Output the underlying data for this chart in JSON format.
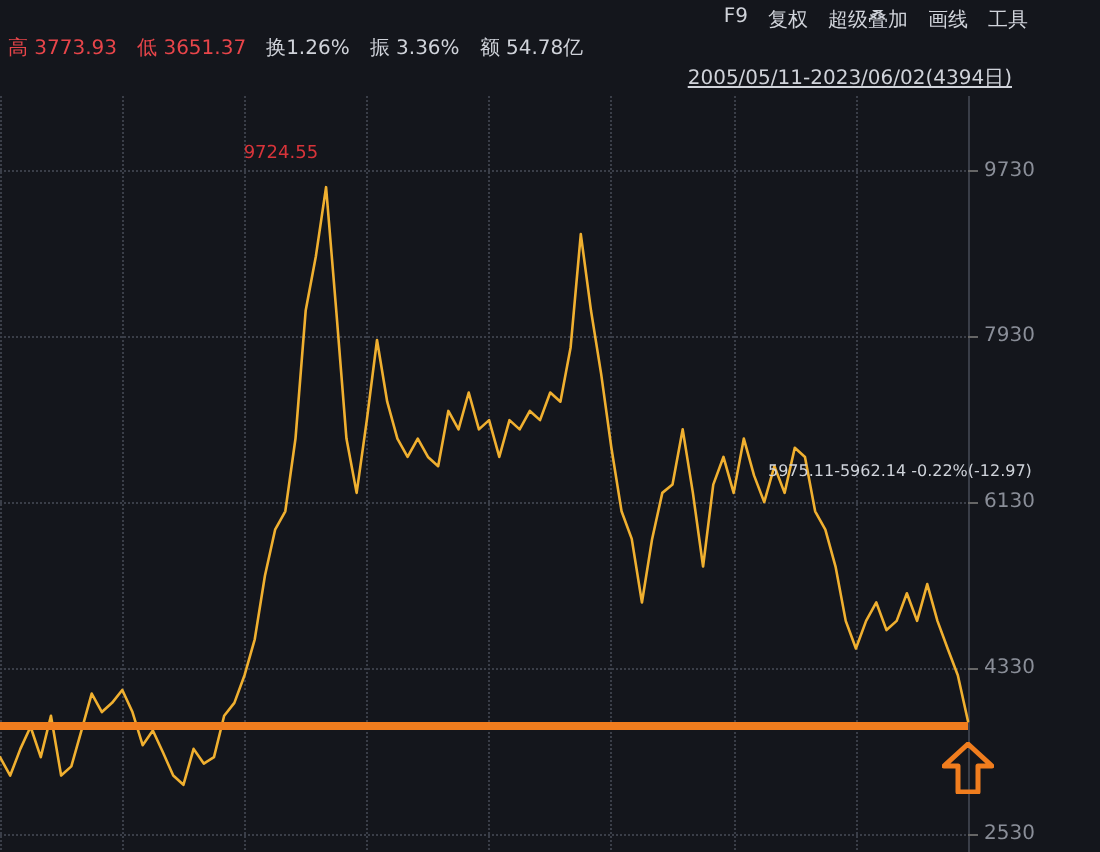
{
  "chart_data": {
    "type": "line",
    "categories": [
      null,
      null,
      null,
      null,
      null,
      null,
      null,
      null,
      null,
      null,
      null,
      null,
      null,
      null,
      null,
      null,
      null,
      null,
      null,
      null,
      null,
      null,
      null,
      null,
      null,
      null,
      null,
      null,
      null,
      null,
      null,
      null,
      null,
      null,
      null,
      null,
      null,
      null,
      null,
      null,
      null,
      null,
      null,
      null,
      null,
      null,
      null,
      null,
      null,
      null,
      null,
      null,
      null,
      null,
      null,
      null,
      null,
      null,
      null,
      null,
      null,
      null,
      null,
      null,
      null,
      null,
      null,
      null,
      null,
      null,
      null,
      null,
      null,
      null,
      null,
      null,
      null,
      null,
      null,
      null,
      null,
      null,
      null,
      null,
      null,
      null,
      null,
      null,
      null,
      null,
      null,
      null,
      null,
      null,
      null,
      null
    ],
    "series": [
      {
        "color": "#f0b030",
        "values": [
          3360,
          3160,
          3450,
          3690,
          3360,
          3810,
          3160,
          3260,
          3650,
          4050,
          3850,
          3950,
          4090,
          3850,
          3490,
          3650,
          3410,
          3160,
          3060,
          3450,
          3290,
          3360,
          3810,
          3950,
          4250,
          4640,
          5330,
          5830,
          6030,
          6820,
          8210,
          8800,
          9550,
          8210,
          6820,
          6230,
          7020,
          7890,
          7220,
          6820,
          6620,
          6820,
          6620,
          6520,
          7120,
          6920,
          7320,
          6920,
          7020,
          6620,
          7020,
          6920,
          7120,
          7020,
          7320,
          7220,
          7810,
          9040,
          8210,
          7520,
          6720,
          6030,
          5730,
          5040,
          5730,
          6230,
          6320,
          6920,
          6230,
          5430,
          6320,
          6620,
          6230,
          6820,
          6420,
          6130,
          6520,
          6230,
          6720,
          6620,
          6030,
          5830,
          5430,
          4840,
          4540,
          4840,
          5040,
          4740,
          4840,
          5140,
          4840,
          5240,
          4840,
          4540,
          4250,
          3750
        ]
      }
    ],
    "ylim": [
      2330,
      10540
    ],
    "yticks": [
      2530,
      4330,
      6130,
      7930,
      9730
    ],
    "grid": true,
    "marker": "none",
    "line_style": "solid",
    "tick_labels": "y",
    "ref_lines": [
      {
        "axis": "y",
        "value": 3700,
        "color": "#f07d1e"
      }
    ],
    "annotations": [
      "F9",
      "复权",
      "超级叠加",
      "画线",
      "工具",
      "高 3773.93",
      "低 3651.37",
      "换1.26%",
      "振 3.36%",
      "额 54.78亿",
      "2005/05/11-2023/06/02(4394日)",
      "9724.55",
      "5975.11-5962.14 -0.22%(-12.97)"
    ]
  }
}
